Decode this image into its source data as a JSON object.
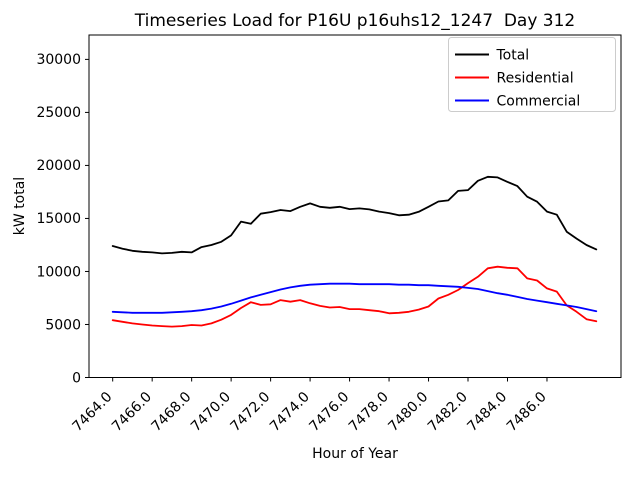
{
  "chart_data": {
    "type": "line",
    "title": "Timeseries Load for P16U p16uhs12_1247  Day 312",
    "xlabel": "Hour of Year",
    "ylabel": "kW total",
    "xlim": [
      7462.8,
      7489.75
    ],
    "ylim": [
      0,
      32300
    ],
    "grid": false,
    "xticks": [
      7464,
      7466,
      7468,
      7470,
      7472,
      7474,
      7476,
      7478,
      7480,
      7482,
      7484,
      7486
    ],
    "xtick_labels": [
      "7464.0",
      "7466.0",
      "7468.0",
      "7470.0",
      "7472.0",
      "7474.0",
      "7476.0",
      "7478.0",
      "7480.0",
      "7482.0",
      "7484.0",
      "7486.0"
    ],
    "yticks": [
      0,
      5000,
      10000,
      15000,
      20000,
      25000,
      30000
    ],
    "ytick_labels": [
      "0",
      "5000",
      "10000",
      "15000",
      "20000",
      "25000",
      "30000"
    ],
    "legend": {
      "position": "upper right",
      "entries": [
        "Total",
        "Residential",
        "Commercial"
      ]
    },
    "x": [
      7464.0,
      7464.5,
      7465.0,
      7465.5,
      7466.0,
      7466.5,
      7467.0,
      7467.5,
      7468.0,
      7468.5,
      7469.0,
      7469.5,
      7470.0,
      7470.5,
      7471.0,
      7471.5,
      7472.0,
      7472.5,
      7473.0,
      7473.5,
      7474.0,
      7474.5,
      7475.0,
      7475.5,
      7476.0,
      7476.5,
      7477.0,
      7477.5,
      7478.0,
      7478.5,
      7479.0,
      7479.5,
      7480.0,
      7480.5,
      7481.0,
      7481.5,
      7482.0,
      7482.5,
      7483.0,
      7483.5,
      7484.0,
      7484.5,
      7485.0,
      7485.5,
      7486.0,
      7486.5,
      7487.0,
      7487.5,
      7488.0,
      7488.5
    ],
    "series": [
      {
        "name": "Total",
        "color": "#000000",
        "values": [
          12400,
          12150,
          11950,
          11850,
          11800,
          11700,
          11750,
          11850,
          11800,
          12300,
          12500,
          12800,
          13400,
          14700,
          14500,
          15450,
          15600,
          15800,
          15690,
          16100,
          16420,
          16100,
          16000,
          16100,
          15880,
          15950,
          15850,
          15650,
          15500,
          15300,
          15350,
          15630,
          16100,
          16600,
          16700,
          17600,
          17670,
          18550,
          18930,
          18870,
          18450,
          18050,
          17050,
          16580,
          15650,
          15350,
          13750,
          13100,
          12500,
          12080
        ]
      },
      {
        "name": "Residential",
        "color": "#ff0000",
        "values": [
          5400,
          5250,
          5100,
          5000,
          4900,
          4850,
          4800,
          4850,
          4950,
          4900,
          5100,
          5450,
          5900,
          6550,
          7100,
          6850,
          6900,
          7300,
          7150,
          7300,
          7000,
          6750,
          6600,
          6650,
          6450,
          6450,
          6350,
          6250,
          6050,
          6100,
          6200,
          6400,
          6700,
          7450,
          7800,
          8250,
          8900,
          9500,
          10300,
          10450,
          10350,
          10300,
          9350,
          9150,
          8400,
          8100,
          6800,
          6200,
          5500,
          5300
        ]
      },
      {
        "name": "Commercial",
        "color": "#0000ff",
        "values": [
          6200,
          6150,
          6100,
          6100,
          6100,
          6100,
          6150,
          6200,
          6250,
          6350,
          6500,
          6700,
          6950,
          7250,
          7550,
          7800,
          8050,
          8300,
          8500,
          8650,
          8750,
          8800,
          8850,
          8850,
          8850,
          8800,
          8800,
          8800,
          8800,
          8750,
          8750,
          8700,
          8700,
          8650,
          8600,
          8550,
          8450,
          8350,
          8150,
          7950,
          7800,
          7600,
          7400,
          7250,
          7100,
          6950,
          6800,
          6650,
          6450,
          6250
        ]
      }
    ]
  }
}
